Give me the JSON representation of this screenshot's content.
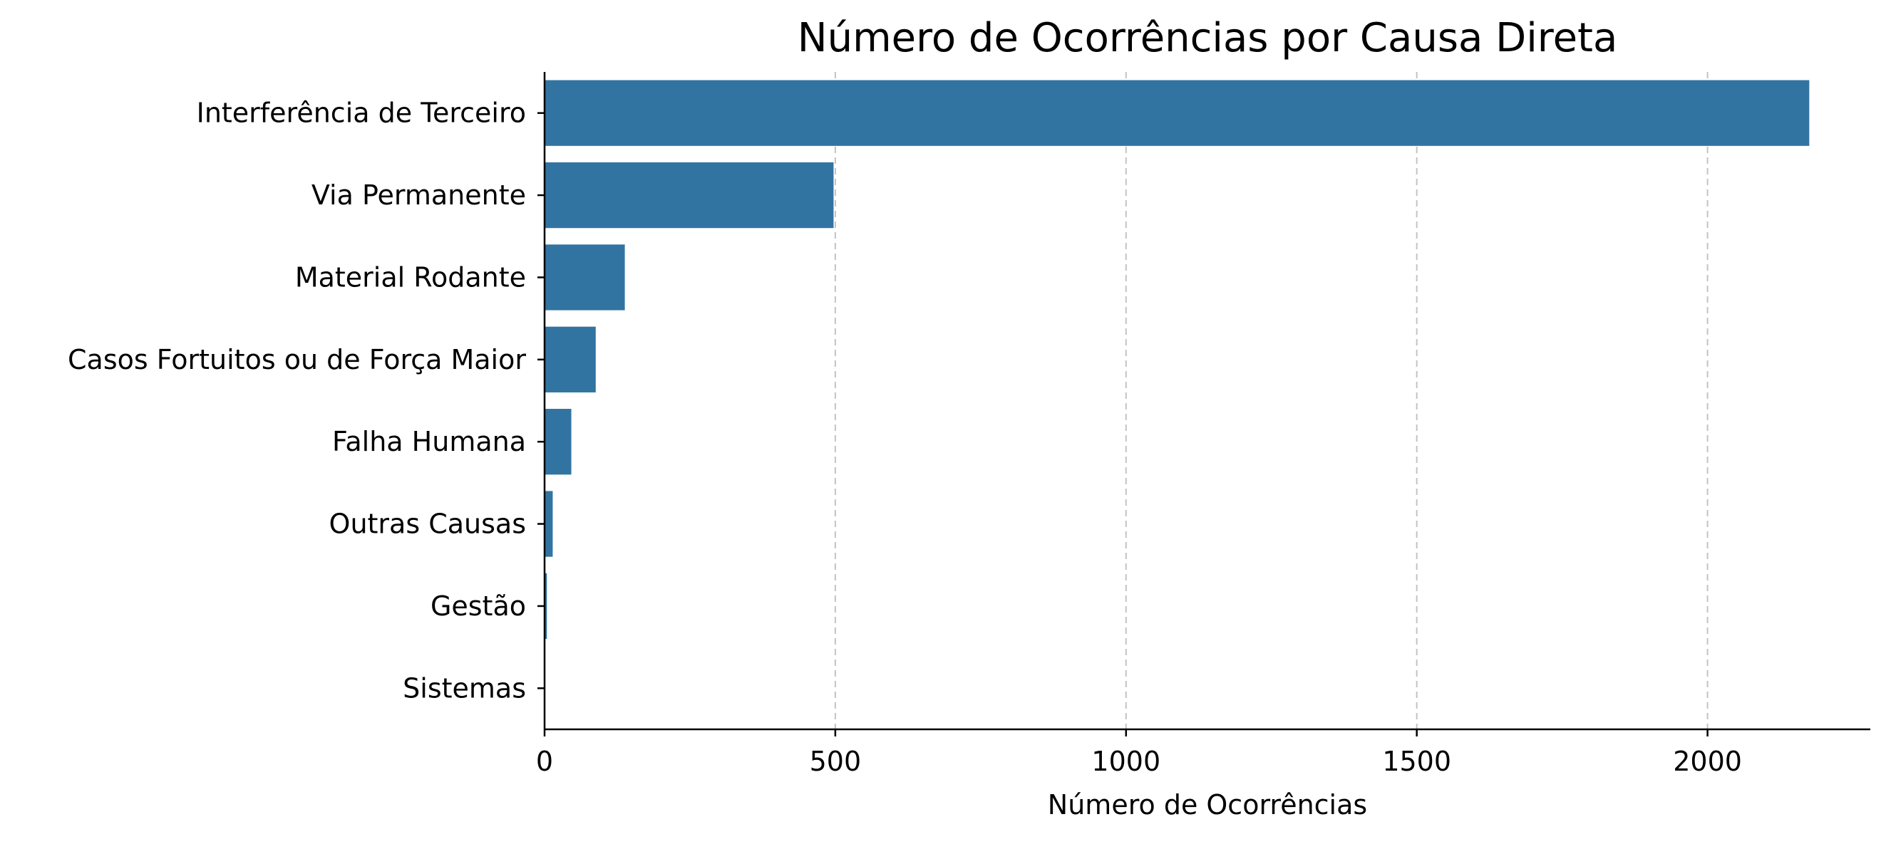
{
  "chart_data": {
    "type": "bar",
    "orientation": "horizontal",
    "title": "Número de Ocorrências por Causa Direta",
    "xlabel": "Número de Ocorrências",
    "ylabel": "",
    "categories": [
      "Interferência de Terceiro",
      "Via Permanente",
      "Material Rodante",
      "Casos Fortuitos ou de Força Maior",
      "Falha Humana",
      "Outras Causas",
      "Gestão",
      "Sistemas"
    ],
    "values": [
      2175,
      497,
      138,
      88,
      46,
      14,
      4,
      1
    ],
    "xlim": [
      0,
      2280
    ],
    "xticks": [
      0,
      500,
      1000,
      1500,
      2000
    ],
    "grid": "x-dashed",
    "bar_color": "#3274a1",
    "legend": "none"
  }
}
